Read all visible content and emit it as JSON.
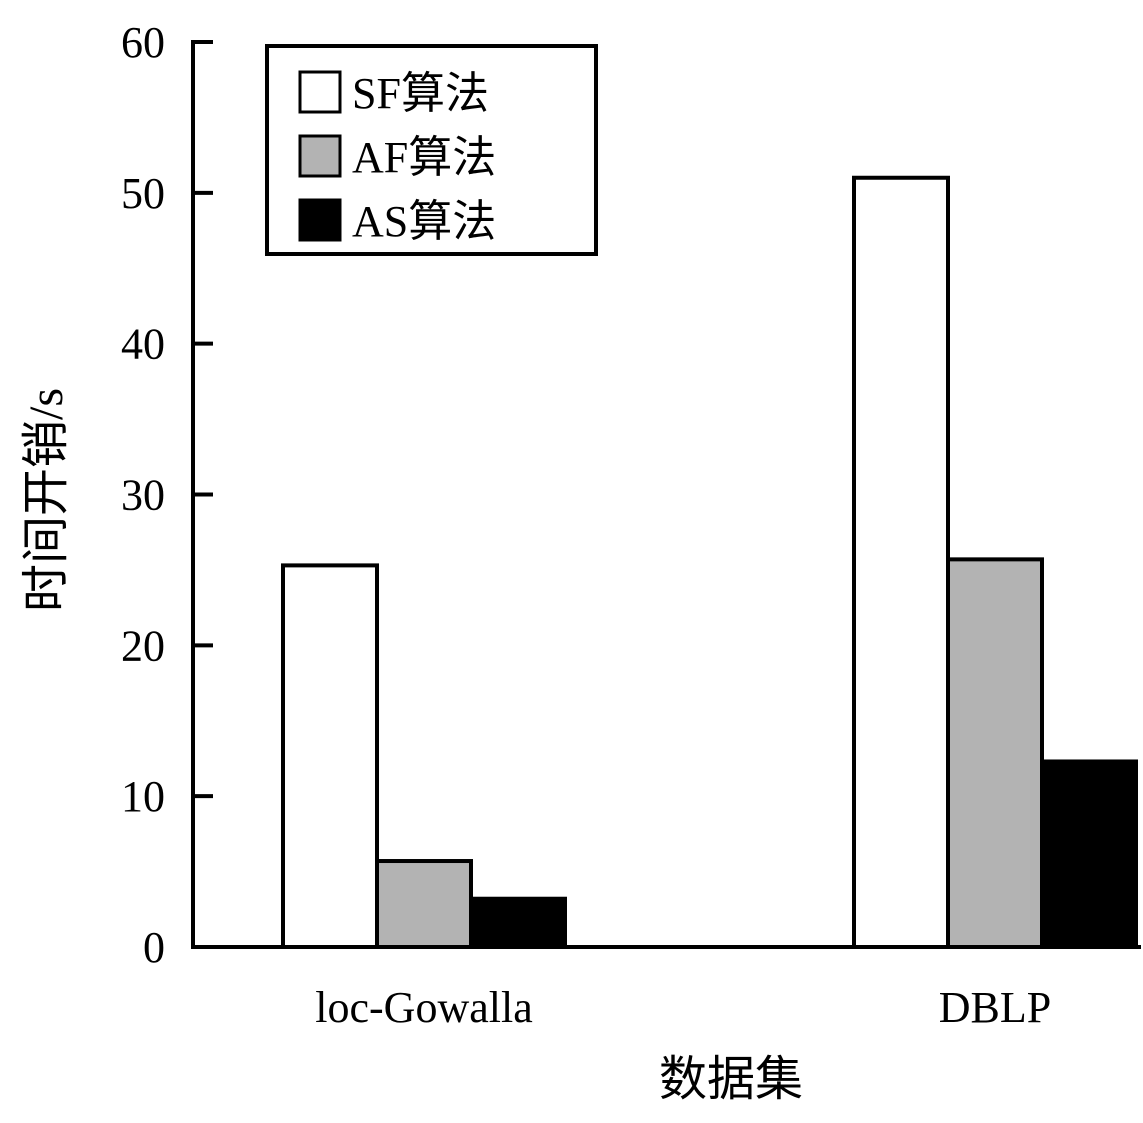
{
  "chart_data": {
    "type": "bar",
    "categories": [
      "loc-Gowalla",
      "DBLP"
    ],
    "series": [
      {
        "name": "SF算法",
        "values": [
          25.3,
          51.0
        ],
        "color": "#ffffff"
      },
      {
        "name": "AF算法",
        "values": [
          5.7,
          25.7
        ],
        "color": "#b3b3b3"
      },
      {
        "name": "AS算法",
        "values": [
          3.2,
          12.3
        ],
        "color": "#000000"
      }
    ],
    "title": "",
    "xlabel": "数据集",
    "ylabel": "时间开销/s",
    "ylim": [
      0,
      60
    ],
    "yticks": [
      0,
      10,
      20,
      30,
      40,
      50,
      60
    ],
    "grid": false,
    "legend_position": "top-left"
  }
}
